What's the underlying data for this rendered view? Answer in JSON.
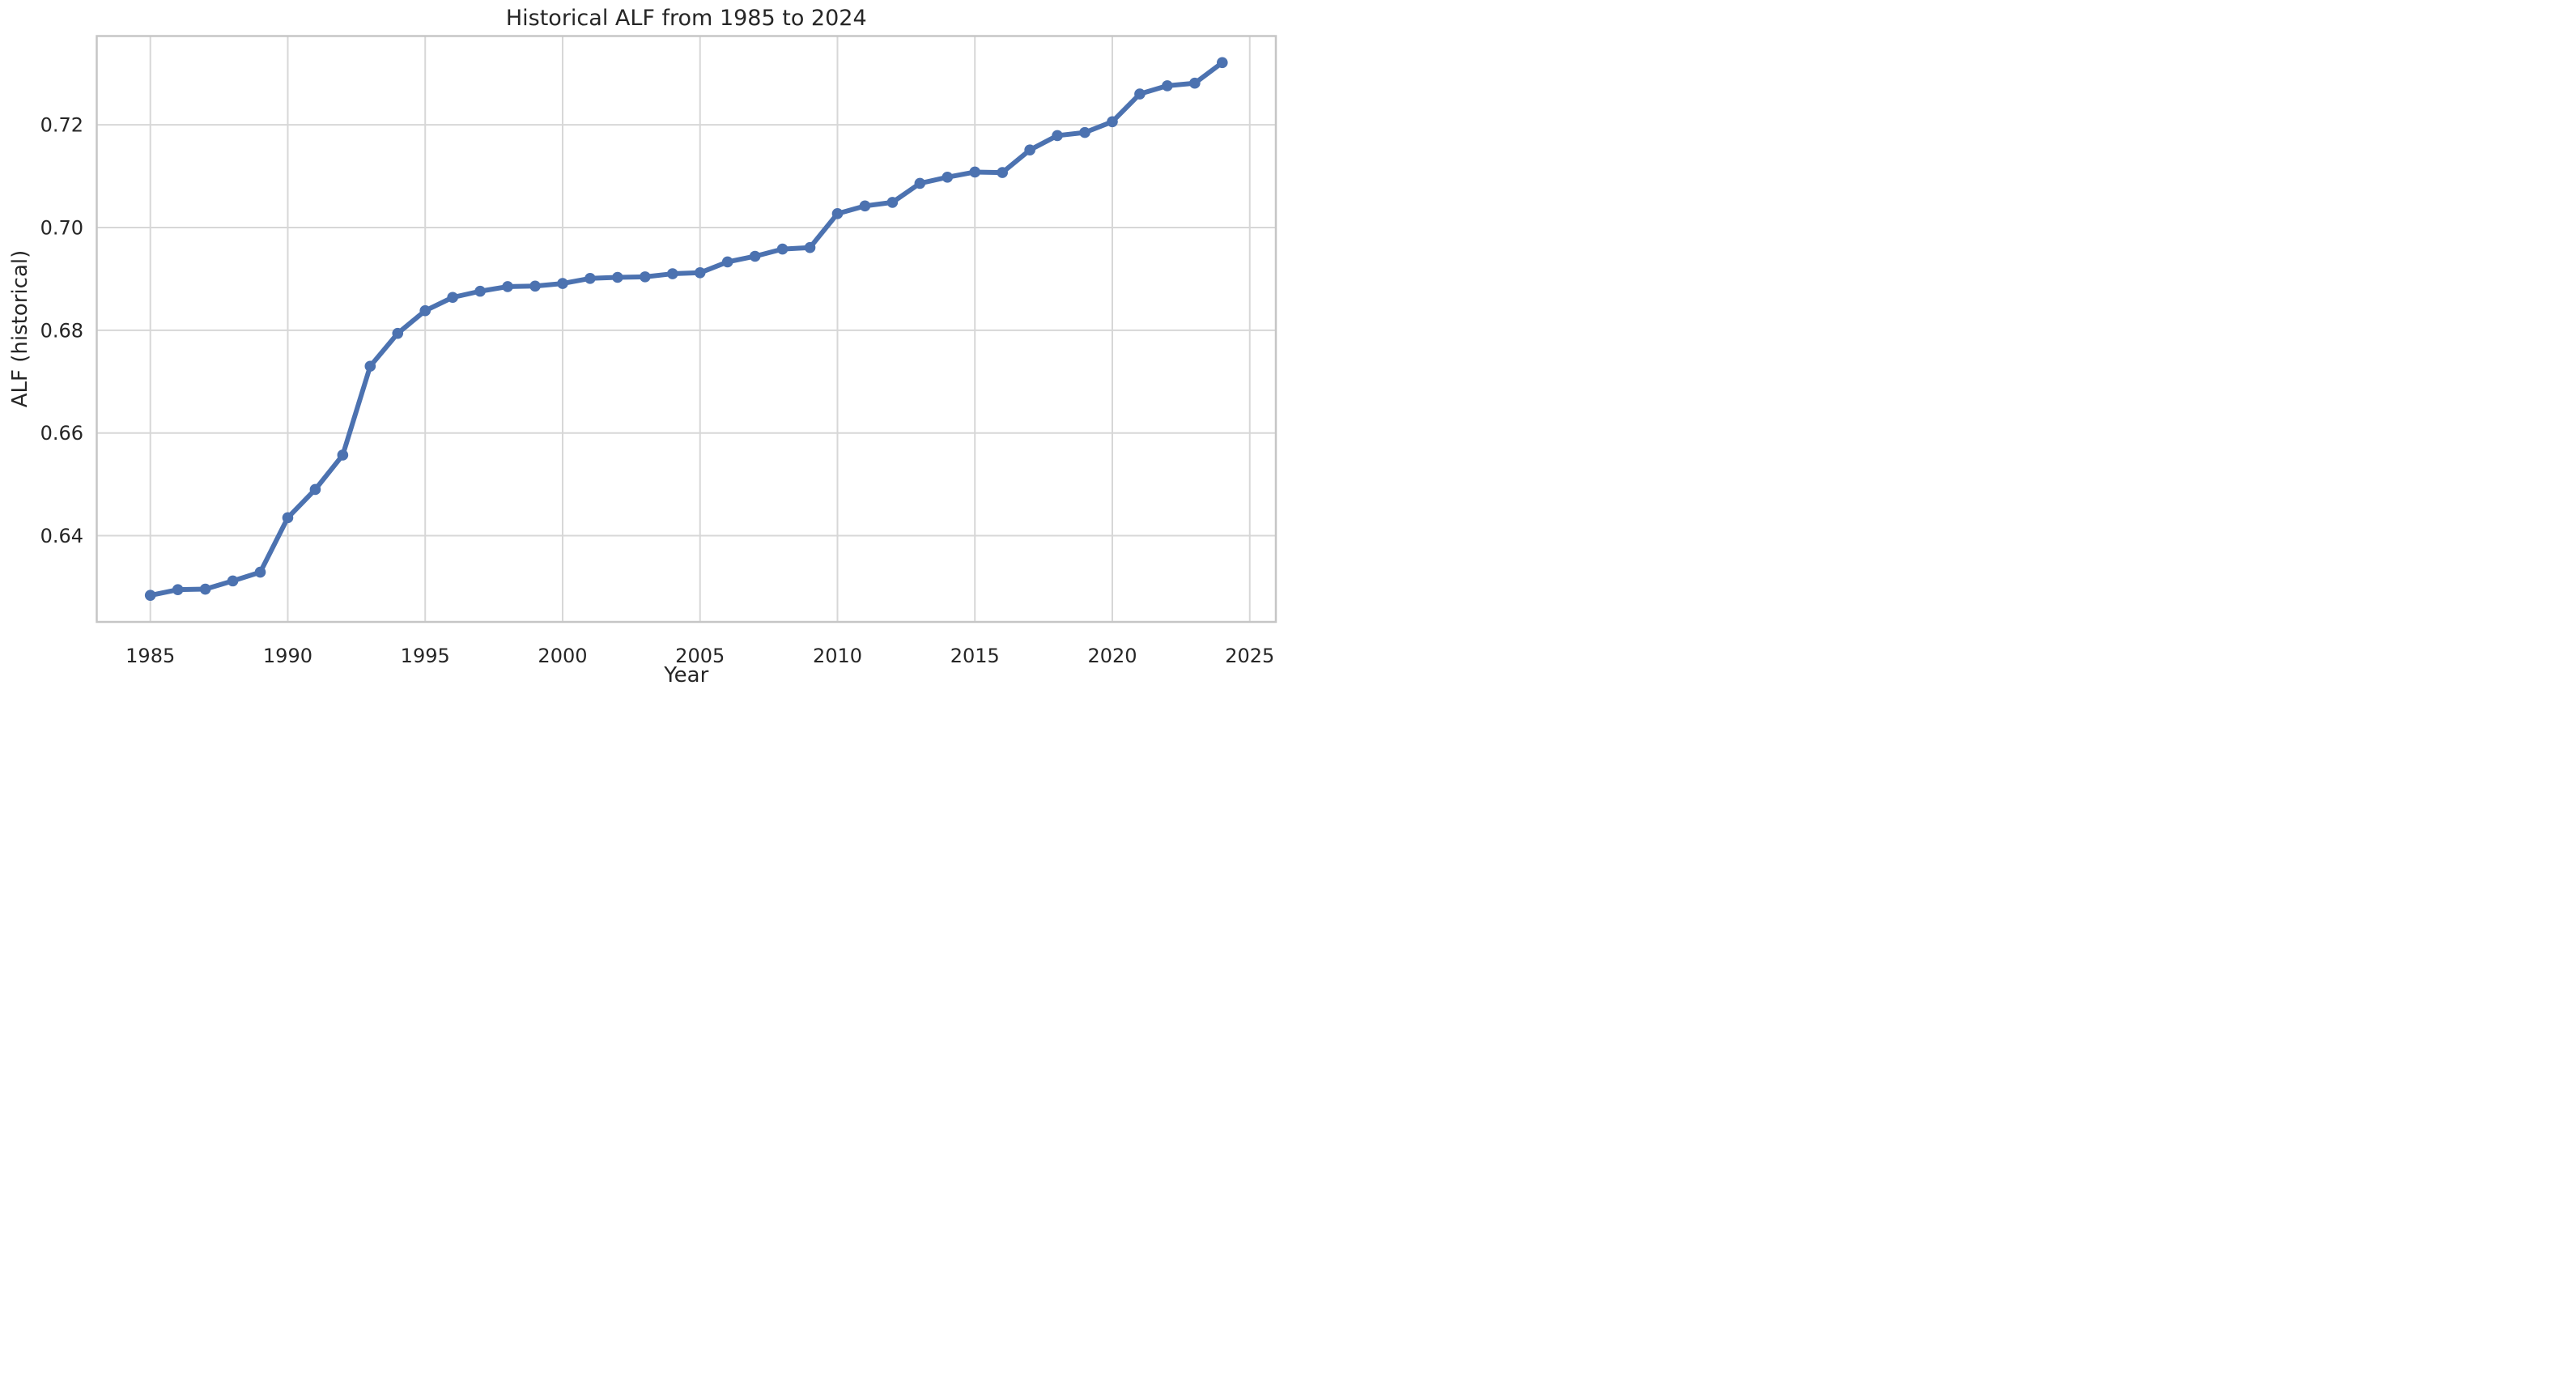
{
  "chart_data": {
    "type": "line",
    "title": "Historical ALF from 1985 to 2024",
    "xlabel": "Year",
    "ylabel": "ALF (historical)",
    "x": [
      1985,
      1986,
      1987,
      1988,
      1989,
      1990,
      1991,
      1992,
      1993,
      1994,
      1995,
      1996,
      1997,
      1998,
      1999,
      2000,
      2001,
      2002,
      2003,
      2004,
      2005,
      2006,
      2007,
      2008,
      2009,
      2010,
      2011,
      2012,
      2013,
      2014,
      2015,
      2016,
      2017,
      2018,
      2019,
      2020,
      2021,
      2022,
      2023,
      2024
    ],
    "series": [
      {
        "name": "ALF (historical)",
        "values": [
          0.6284,
          0.6295,
          0.6296,
          0.6312,
          0.6329,
          0.6435,
          0.649,
          0.6557,
          0.673,
          0.6794,
          0.6838,
          0.6864,
          0.6876,
          0.6885,
          0.6886,
          0.6891,
          0.6901,
          0.6903,
          0.6904,
          0.691,
          0.6912,
          0.6933,
          0.6944,
          0.6958,
          0.6961,
          0.7027,
          0.7042,
          0.7049,
          0.7086,
          0.7098,
          0.7108,
          0.7107,
          0.7151,
          0.7179,
          0.7185,
          0.7206,
          0.726,
          0.7276,
          0.7281,
          0.7321
        ],
        "color": "#4c72b0",
        "marker": "circle"
      }
    ],
    "xlim": [
      1983.05,
      2025.95
    ],
    "ylim": [
      0.62322,
      0.73728
    ],
    "xticks": {
      "values": [
        1985,
        1990,
        1995,
        2000,
        2005,
        2010,
        2015,
        2020,
        2025
      ],
      "labels": [
        "1985",
        "1990",
        "1995",
        "2000",
        "2005",
        "2010",
        "2015",
        "2020",
        "2025"
      ]
    },
    "yticks": {
      "values": [
        0.64,
        0.66,
        0.68,
        0.7,
        0.72
      ],
      "labels": [
        "0.64",
        "0.66",
        "0.68",
        "0.70",
        "0.72"
      ]
    },
    "grid": true,
    "legend": null,
    "colors": {
      "line": "#4c72b0",
      "grid": "#d7d7d7",
      "spine": "#c6c6c6",
      "text": "#262626",
      "background": "#ffffff"
    }
  }
}
